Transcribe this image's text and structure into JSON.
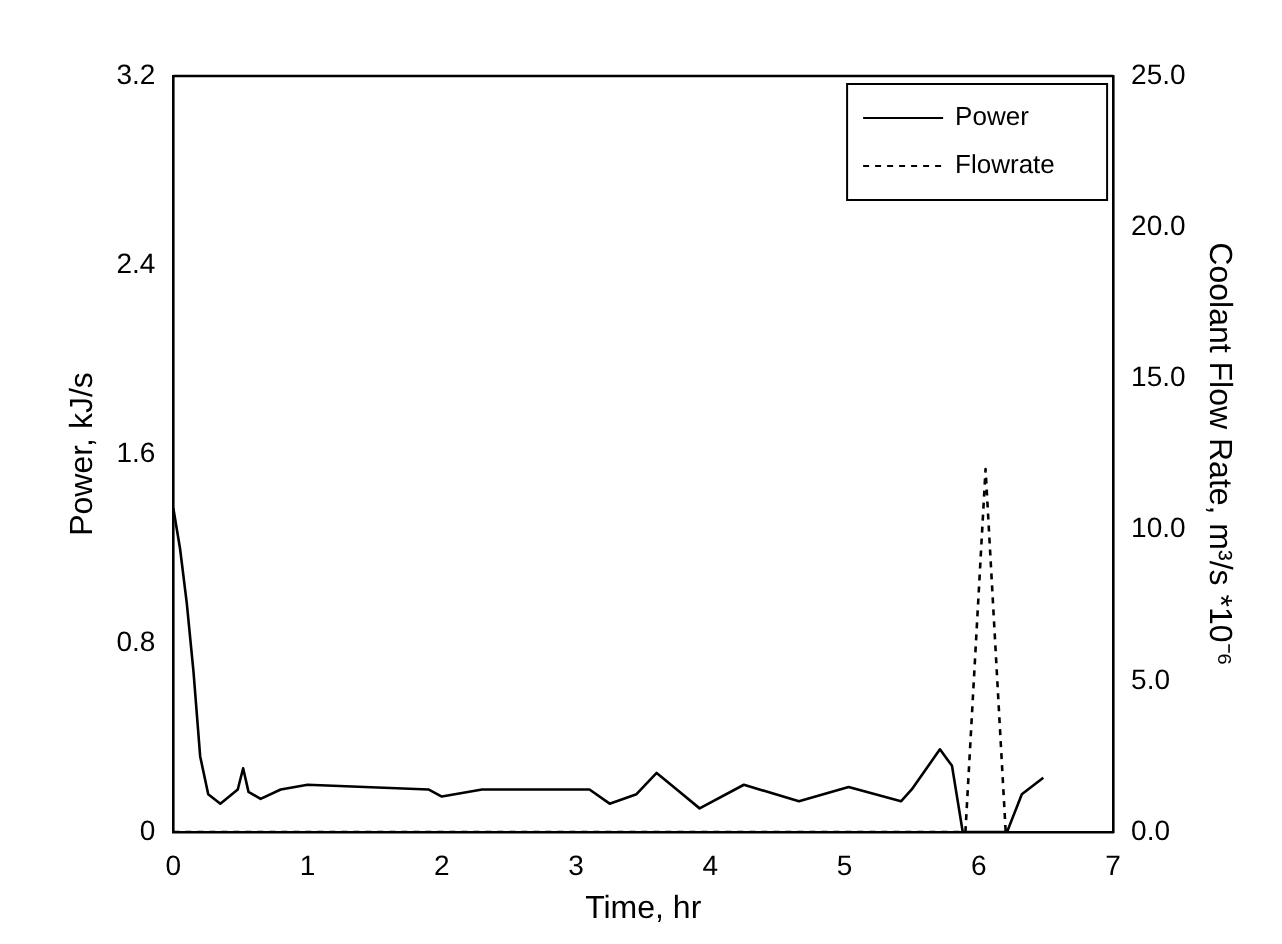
{
  "chart_data": {
    "type": "line",
    "xlabel": "Time, hr",
    "ylabel": "Power, kJ/s",
    "y2label": "Coolant Flow Rate, m³/s *10⁻⁶",
    "xlim": [
      0,
      7
    ],
    "xticks": [
      0,
      1,
      2,
      3,
      4,
      5,
      6,
      7
    ],
    "ylim": [
      0,
      3.2
    ],
    "yticks": [
      0,
      0.8,
      1.6,
      2.4,
      3.2
    ],
    "y2lim": [
      0,
      25
    ],
    "y2ticks": [
      {
        "value": 0,
        "label": "0.0"
      },
      {
        "value": 5,
        "label": "5.0"
      },
      {
        "value": 10,
        "label": "10.0"
      },
      {
        "value": 15,
        "label": "15.0"
      },
      {
        "value": 20,
        "label": "20.0"
      },
      {
        "value": 25,
        "label": "25.0"
      }
    ],
    "grid": false,
    "legend": "top right",
    "marker": "none",
    "series": [
      {
        "name": "Power",
        "color": "#000000",
        "line_style": "solid",
        "x": [
          0,
          0.05,
          0.1,
          0.15,
          0.2,
          0.26,
          0.35,
          0.48,
          0.52,
          0.56,
          0.65,
          0.8,
          1.0,
          1.9,
          2.0,
          2.3,
          3.1,
          3.25,
          3.45,
          3.6,
          3.75,
          3.92,
          4.25,
          4.66,
          5.03,
          5.42,
          5.5,
          5.71,
          5.8,
          5.88,
          6.21,
          6.32,
          6.48
        ],
        "values": [
          1.37,
          1.2,
          0.97,
          0.68,
          0.32,
          0.16,
          0.12,
          0.18,
          0.27,
          0.17,
          0.14,
          0.18,
          0.2,
          0.18,
          0.15,
          0.18,
          0.18,
          0.12,
          0.16,
          0.25,
          0.18,
          0.1,
          0.2,
          0.13,
          0.19,
          0.13,
          0.18,
          0.35,
          0.28,
          0,
          0,
          0.16,
          0.23
        ]
      },
      {
        "name": "Flowrate",
        "color": "#000000",
        "line_style": "dashed",
        "axis": "y2",
        "x": [
          0,
          5.9,
          6.05,
          6.2
        ],
        "values": [
          0,
          0,
          12,
          0
        ]
      }
    ]
  }
}
